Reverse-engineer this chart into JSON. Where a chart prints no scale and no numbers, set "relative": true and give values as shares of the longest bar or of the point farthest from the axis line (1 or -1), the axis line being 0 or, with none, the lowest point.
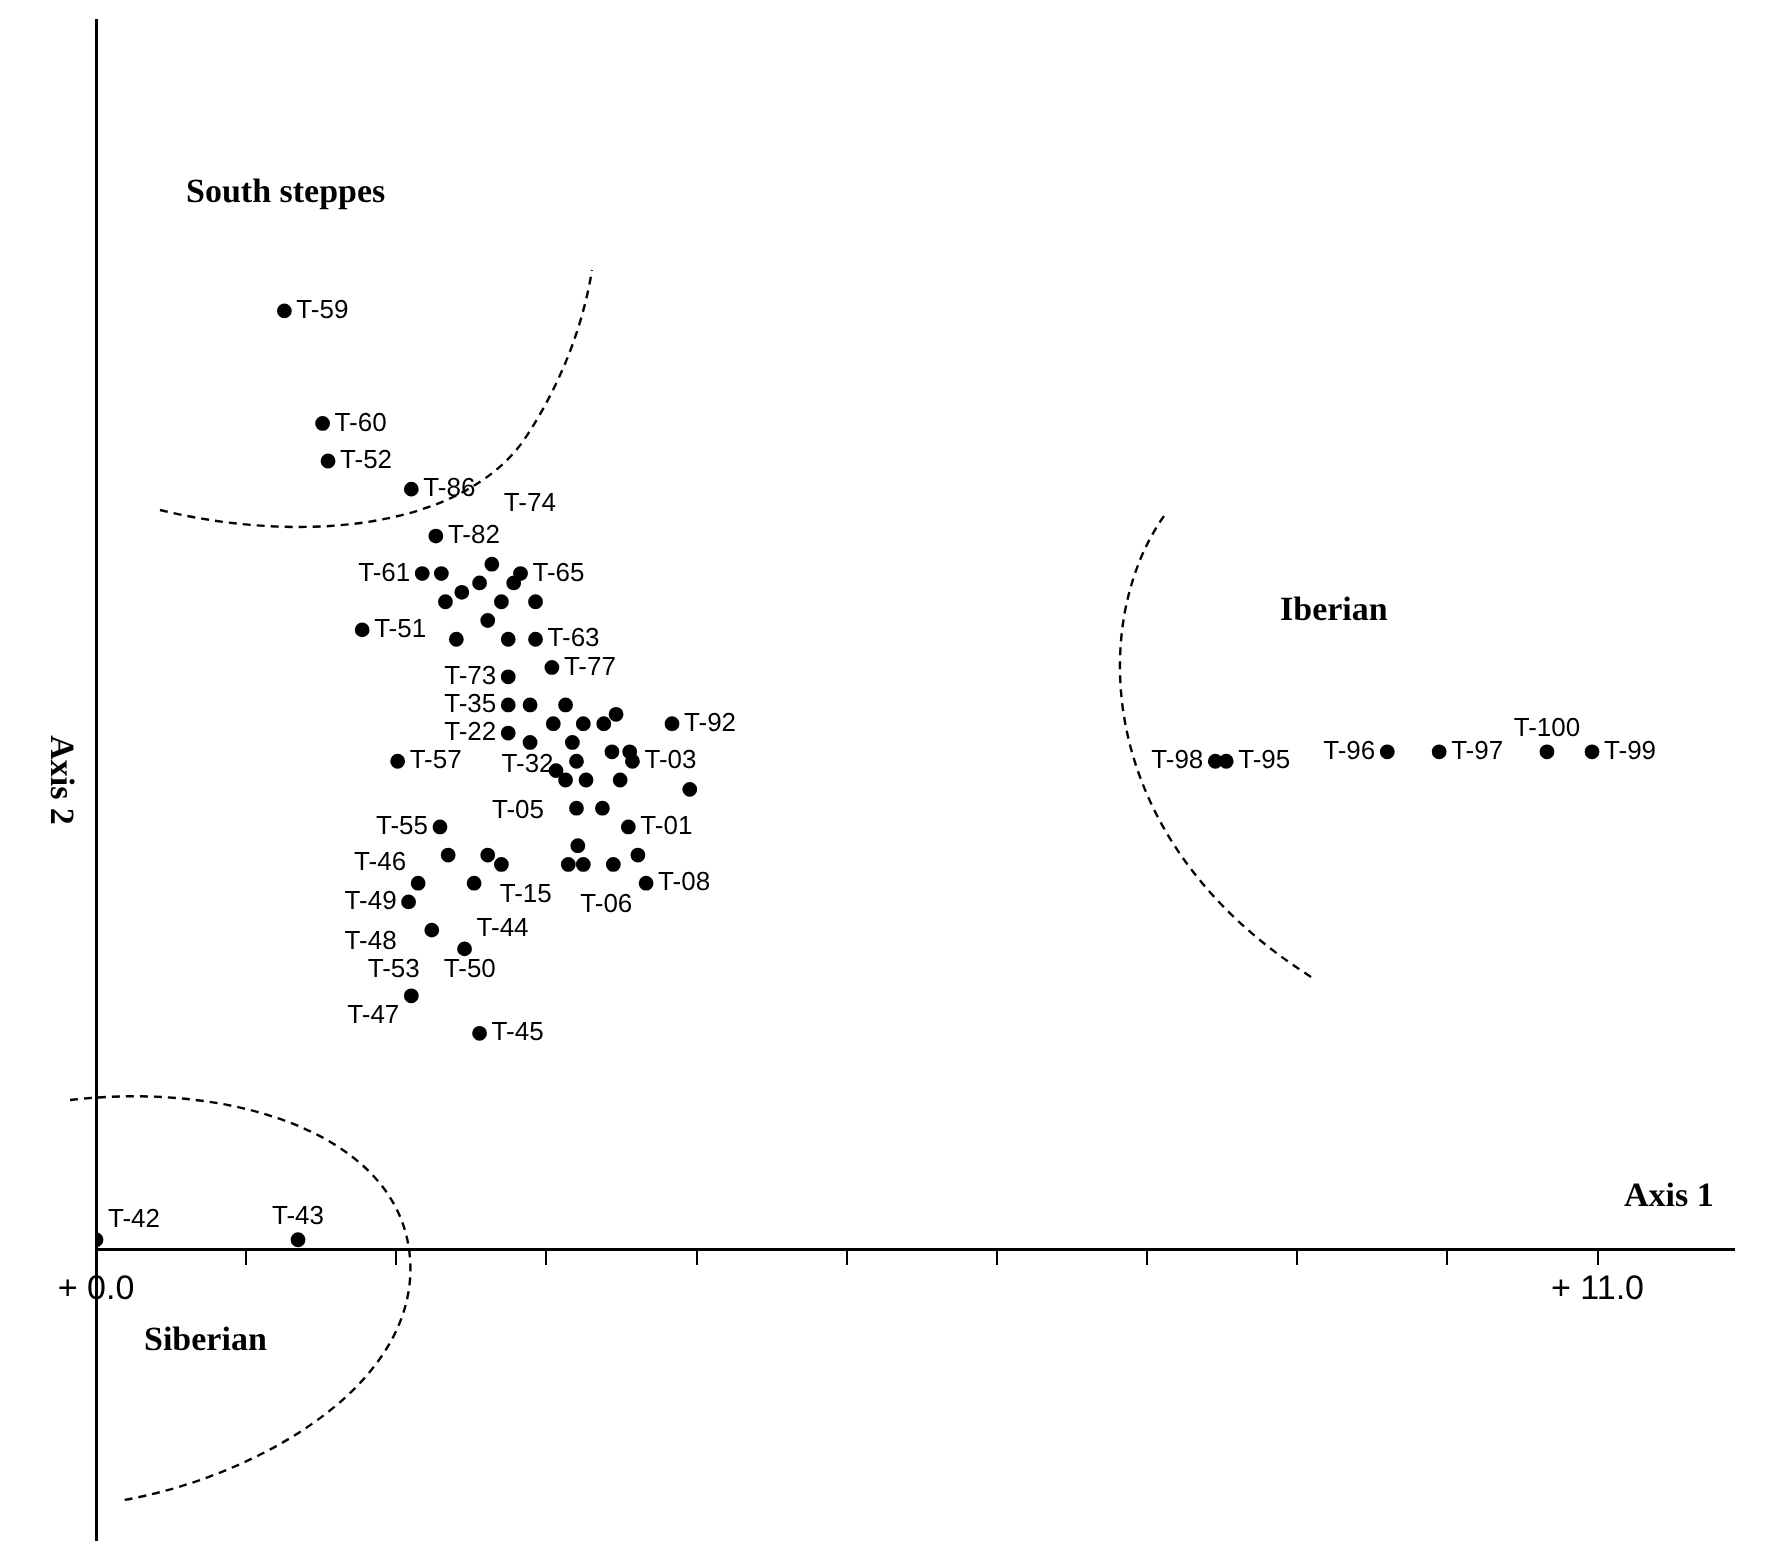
{
  "chart_data": {
    "type": "scatter",
    "xlabel": "Axis 1",
    "ylabel": "Axis 2",
    "relative": true,
    "marker": "circle",
    "legend": false,
    "xlim": [
      0,
      12
    ],
    "xticks": [
      {
        "value": 0,
        "label": "+ 0.0"
      },
      {
        "value": 1.1,
        "label": null
      },
      {
        "value": 2.2,
        "label": null
      },
      {
        "value": 3.3,
        "label": null
      },
      {
        "value": 4.4,
        "label": null
      },
      {
        "value": 5.5,
        "label": null
      },
      {
        "value": 6.6,
        "label": null
      },
      {
        "value": 7.7,
        "label": null
      },
      {
        "value": 8.8,
        "label": null
      },
      {
        "value": 9.9,
        "label": null
      },
      {
        "value": 11,
        "label": "+ 11.0"
      }
    ],
    "series": [
      {
        "color": "#000000",
        "x": [
          1.38,
          1.66,
          1.7,
          2.31,
          2.49,
          2.39,
          2.53,
          2.9,
          3.11,
          3.06,
          2.81,
          2.68,
          2.56,
          2.97,
          3.22,
          1.95,
          2.87,
          2.64,
          3.02,
          3.22,
          3.02,
          3.34,
          3.02,
          3.18,
          3.44,
          3.35,
          3.57,
          3.72,
          3.81,
          4.22,
          3.02,
          3.18,
          3.49,
          3.52,
          3.78,
          3.91,
          3.93,
          2.21,
          3.37,
          3.44,
          3.59,
          3.84,
          4.35,
          3.52,
          3.71,
          2.52,
          3.9,
          3.53,
          2.58,
          2.87,
          2.97,
          3.46,
          3.57,
          3.79,
          3.97,
          2.77,
          4.03,
          2.36,
          2.29,
          2.46,
          2.7,
          2.31,
          2.81,
          8.2,
          8.28,
          9.46,
          9.84,
          10.63,
          10.96,
          1.48,
          0.0
        ],
        "values": [
          1.0,
          0.88,
          0.84,
          0.81,
          0.76,
          0.72,
          0.72,
          0.73,
          0.72,
          0.71,
          0.71,
          0.7,
          0.69,
          0.69,
          0.69,
          0.66,
          0.67,
          0.65,
          0.65,
          0.65,
          0.61,
          0.62,
          0.58,
          0.58,
          0.58,
          0.56,
          0.56,
          0.56,
          0.57,
          0.56,
          0.55,
          0.54,
          0.54,
          0.52,
          0.53,
          0.53,
          0.52,
          0.52,
          0.51,
          0.5,
          0.5,
          0.5,
          0.49,
          0.47,
          0.47,
          0.45,
          0.45,
          0.43,
          0.42,
          0.42,
          0.41,
          0.41,
          0.41,
          0.41,
          0.42,
          0.39,
          0.39,
          0.39,
          0.37,
          0.34,
          0.32,
          0.27,
          0.23,
          0.52,
          0.52,
          0.53,
          0.53,
          0.53,
          0.53,
          0.01,
          0.01
        ]
      }
    ],
    "annotations": [
      "South steppes",
      "Iberian",
      "Siberian",
      {
        "text": "T-59",
        "x": 1.38,
        "y": 1.0
      },
      {
        "text": "T-60",
        "x": 1.66,
        "y": 0.88
      },
      {
        "text": "T-52",
        "x": 1.7,
        "y": 0.84
      },
      {
        "text": "T-86",
        "x": 2.31,
        "y": 0.81
      },
      {
        "text": "T-82",
        "x": 2.49,
        "y": 0.76
      },
      {
        "text": "T-61",
        "x": 2.39,
        "y": 0.72
      },
      {
        "text": "T-74",
        "x": 2.9,
        "y": 0.73
      },
      {
        "text": "T-65",
        "x": 3.11,
        "y": 0.72
      },
      {
        "text": "T-51",
        "x": 1.95,
        "y": 0.66
      },
      {
        "text": "T-63",
        "x": 3.22,
        "y": 0.65
      },
      {
        "text": "T-73",
        "x": 3.02,
        "y": 0.61
      },
      {
        "text": "T-77",
        "x": 3.34,
        "y": 0.62
      },
      {
        "text": "T-35",
        "x": 3.02,
        "y": 0.58
      },
      {
        "text": "T-32",
        "x": 3.44,
        "y": 0.58
      },
      {
        "text": "T-92",
        "x": 4.22,
        "y": 0.56
      },
      {
        "text": "T-22",
        "x": 3.02,
        "y": 0.55
      },
      {
        "text": "T-03",
        "x": 3.93,
        "y": 0.52
      },
      {
        "text": "T-57",
        "x": 2.21,
        "y": 0.52
      },
      {
        "text": "T-05",
        "x": 3.37,
        "y": 0.51
      },
      {
        "text": "T-55",
        "x": 2.52,
        "y": 0.45
      },
      {
        "text": "T-01",
        "x": 3.9,
        "y": 0.45
      },
      {
        "text": "T-15",
        "x": 2.87,
        "y": 0.42
      },
      {
        "text": "T-06",
        "x": 3.46,
        "y": 0.41
      },
      {
        "text": "T-08",
        "x": 4.03,
        "y": 0.39
      },
      {
        "text": "T-46",
        "x": 2.36,
        "y": 0.39
      },
      {
        "text": "T-49",
        "x": 2.29,
        "y": 0.37
      },
      {
        "text": "T-48",
        "x": 2.29,
        "y": 0.37
      },
      {
        "text": "T-50",
        "x": 2.46,
        "y": 0.34
      },
      {
        "text": "T-53",
        "x": 2.46,
        "y": 0.34
      },
      {
        "text": "T-44",
        "x": 2.7,
        "y": 0.32
      },
      {
        "text": "T-47",
        "x": 2.31,
        "y": 0.27
      },
      {
        "text": "T-45",
        "x": 2.81,
        "y": 0.23
      },
      {
        "text": "T-98",
        "x": 8.2,
        "y": 0.52
      },
      {
        "text": "T-95",
        "x": 8.28,
        "y": 0.52
      },
      {
        "text": "T-96",
        "x": 9.46,
        "y": 0.53
      },
      {
        "text": "T-97",
        "x": 9.84,
        "y": 0.53
      },
      {
        "text": "T-100",
        "x": 10.63,
        "y": 0.53
      },
      {
        "text": "T-99",
        "x": 10.96,
        "y": 0.53
      },
      {
        "text": "T-43",
        "x": 1.48,
        "y": 0.01
      },
      {
        "text": "T-42",
        "x": 0.0,
        "y": 0.01
      }
    ]
  }
}
